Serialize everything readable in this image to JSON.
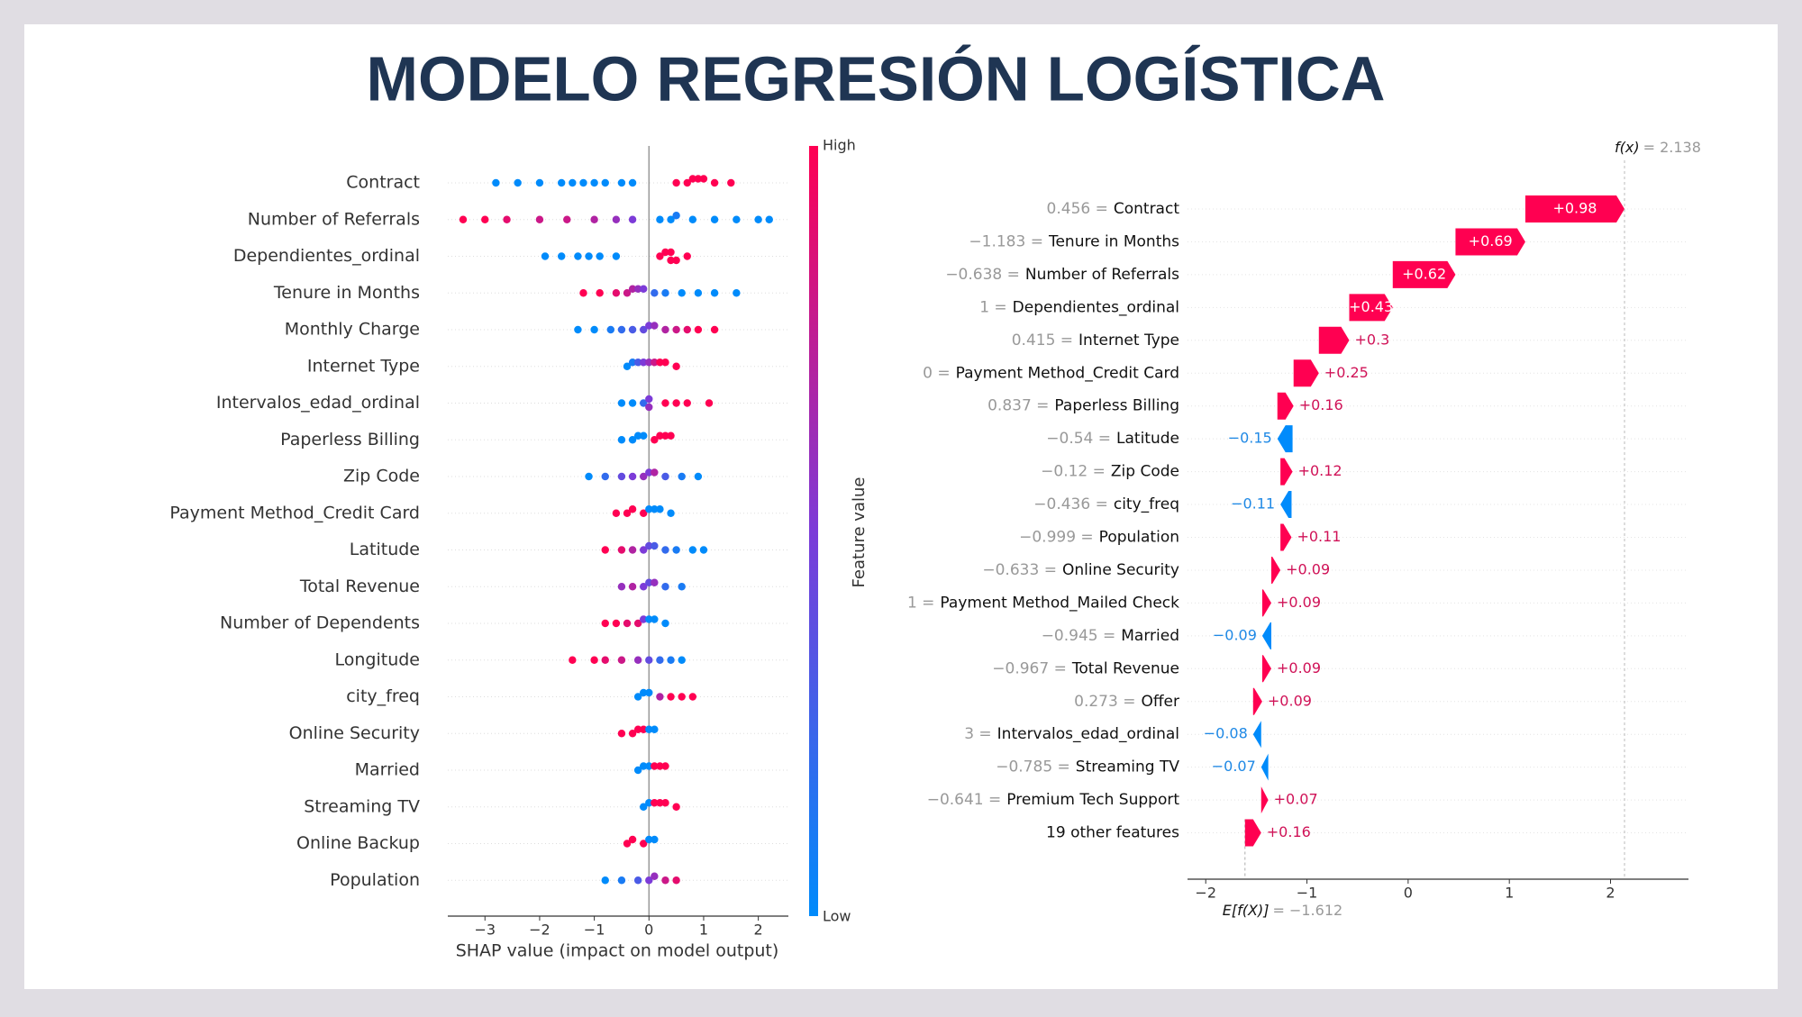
{
  "title": "MODELO REGRESIÓN LOGÍSTICA",
  "chart_data": [
    {
      "type": "beeswarm",
      "categories": [
        "Contract",
        "Number of Referrals",
        "Dependientes_ordinal",
        "Tenure in Months",
        "Monthly Charge",
        "Internet Type",
        "Intervalos_edad_ordinal",
        "Paperless Billing",
        "Zip Code",
        "Payment Method_Credit Card",
        "Latitude",
        "Total Revenue",
        "Number of Dependents",
        "Longitude",
        "city_freq",
        "Online Security",
        "Married",
        "Streaming TV",
        "Online Backup",
        "Population"
      ],
      "points": [
        {
          "shap": [
            -2.8,
            -2.4,
            -2.0,
            -1.6,
            -1.4,
            -1.2,
            -1.0,
            -0.8,
            -0.5,
            -0.3,
            0.5,
            0.7,
            0.8,
            0.9,
            1.0,
            1.2,
            1.5
          ],
          "feature_values": [
            0,
            0,
            0,
            0,
            0,
            0,
            0,
            0,
            0,
            0,
            1,
            1,
            1,
            1,
            1,
            1,
            1
          ]
        },
        {
          "shap": [
            -3.4,
            -3.0,
            -2.6,
            -2.0,
            -1.5,
            -1.0,
            -0.6,
            -0.3,
            0.2,
            0.4,
            0.5,
            0.8,
            1.2,
            1.6,
            2.0,
            2.2
          ],
          "feature_values": [
            1,
            1,
            0.9,
            0.8,
            0.8,
            0.7,
            0.6,
            0.5,
            0,
            0,
            0.1,
            0,
            0,
            0,
            0,
            0
          ]
        },
        {
          "shap": [
            -1.9,
            -1.6,
            -1.3,
            -1.1,
            -0.9,
            -0.6,
            0.2,
            0.3,
            0.4,
            0.4,
            0.5,
            0.7
          ],
          "feature_values": [
            0,
            0,
            0,
            0,
            0,
            0,
            1,
            1,
            1,
            1,
            1,
            1
          ]
        },
        {
          "shap": [
            -1.2,
            -0.9,
            -0.6,
            -0.4,
            -0.3,
            -0.2,
            -0.1,
            0.1,
            0.3,
            0.6,
            0.9,
            1.2,
            1.6
          ],
          "feature_values": [
            1,
            1,
            0.9,
            0.8,
            0.7,
            0.6,
            0.5,
            0.2,
            0.1,
            0,
            0,
            0,
            0
          ]
        },
        {
          "shap": [
            -1.3,
            -1.0,
            -0.7,
            -0.5,
            -0.3,
            -0.1,
            0.0,
            0.1,
            0.3,
            0.5,
            0.7,
            0.9,
            1.2
          ],
          "feature_values": [
            0,
            0,
            0.1,
            0.2,
            0.3,
            0.4,
            0.5,
            0.6,
            0.7,
            0.8,
            0.9,
            1,
            1
          ]
        },
        {
          "shap": [
            -0.4,
            -0.3,
            -0.2,
            -0.1,
            0,
            0.1,
            0.2,
            0.3,
            0.5
          ],
          "feature_values": [
            0,
            0.1,
            0.3,
            0.5,
            0.6,
            0.8,
            1,
            1,
            1
          ]
        },
        {
          "shap": [
            -0.5,
            -0.3,
            -0.1,
            0,
            0,
            0.3,
            0.5,
            0.7,
            1.1
          ],
          "feature_values": [
            0,
            0,
            0.2,
            0.5,
            0.6,
            1,
            1,
            1,
            1
          ]
        },
        {
          "shap": [
            -0.5,
            -0.3,
            -0.2,
            -0.1,
            0.1,
            0.2,
            0.3,
            0.4
          ],
          "feature_values": [
            0,
            0,
            0,
            0,
            1,
            1,
            1,
            1
          ]
        },
        {
          "shap": [
            -1.1,
            -0.8,
            -0.5,
            -0.3,
            -0.1,
            0,
            0.1,
            0.3,
            0.6,
            0.9
          ],
          "feature_values": [
            0,
            0.2,
            0.4,
            0.5,
            0.6,
            0.5,
            0.7,
            0.3,
            0.1,
            0
          ]
        },
        {
          "shap": [
            -0.6,
            -0.4,
            -0.3,
            -0.1,
            0,
            0.1,
            0.2,
            0.4
          ],
          "feature_values": [
            1,
            1,
            1,
            1,
            0,
            0,
            0,
            0
          ]
        },
        {
          "shap": [
            -0.8,
            -0.5,
            -0.3,
            -0.1,
            0,
            0.1,
            0.3,
            0.5,
            0.8,
            1.0
          ],
          "feature_values": [
            1,
            0.9,
            0.7,
            0.5,
            0.4,
            0.3,
            0.2,
            0.1,
            0,
            0
          ]
        },
        {
          "shap": [
            -0.5,
            -0.3,
            -0.1,
            0,
            0.1,
            0.3,
            0.6
          ],
          "feature_values": [
            0.6,
            0.7,
            0.5,
            0.4,
            0.6,
            0.2,
            0.1
          ]
        },
        {
          "shap": [
            -0.8,
            -0.6,
            -0.4,
            -0.2,
            -0.1,
            0,
            0.1,
            0.3
          ],
          "feature_values": [
            1,
            1,
            0.9,
            0.9,
            0.5,
            0,
            0,
            0
          ]
        },
        {
          "shap": [
            -1.4,
            -1.0,
            -0.8,
            -0.5,
            -0.2,
            0,
            0.2,
            0.4,
            0.6
          ],
          "feature_values": [
            1,
            1,
            0.9,
            0.8,
            0.6,
            0.4,
            0.2,
            0.1,
            0
          ]
        },
        {
          "shap": [
            -0.2,
            -0.1,
            0,
            0.2,
            0.4,
            0.6,
            0.8
          ],
          "feature_values": [
            0,
            0,
            0,
            0.7,
            1,
            1,
            1
          ]
        },
        {
          "shap": [
            -0.5,
            -0.3,
            -0.2,
            -0.1,
            0,
            0.1
          ],
          "feature_values": [
            1,
            1,
            1,
            1,
            0,
            0
          ]
        },
        {
          "shap": [
            -0.2,
            -0.1,
            0,
            0.1,
            0.2,
            0.3
          ],
          "feature_values": [
            0,
            0,
            0,
            1,
            1,
            1
          ]
        },
        {
          "shap": [
            -0.1,
            0,
            0.1,
            0.2,
            0.3,
            0.5
          ],
          "feature_values": [
            0,
            0,
            1,
            1,
            1,
            1
          ]
        },
        {
          "shap": [
            -0.4,
            -0.3,
            -0.1,
            0,
            0.1
          ],
          "feature_values": [
            1,
            1,
            1,
            0,
            0
          ]
        },
        {
          "shap": [
            -0.8,
            -0.5,
            -0.2,
            0,
            0.1,
            0.3,
            0.5
          ],
          "feature_values": [
            0,
            0.1,
            0.3,
            0.5,
            0.6,
            0.8,
            0.9
          ]
        }
      ],
      "xlim": [
        -3.68,
        2.55
      ],
      "xticks": [
        {
          "value": -3,
          "label": "−3"
        },
        {
          "value": -2,
          "label": "−2"
        },
        {
          "value": -1,
          "label": "−1"
        },
        0,
        1,
        2
      ],
      "xlabel": "SHAP value (impact on model output)",
      "colorbar": {
        "high": "High",
        "low": "Low",
        "label": "Feature value",
        "colors": [
          "#008bfb",
          "#7c3bd8",
          "#ff0052"
        ]
      }
    },
    {
      "type": "waterfall",
      "prefixes": [
        "0.456 =",
        "−1.183 =",
        "−0.638 =",
        "1 =",
        "0.415 =",
        "0 =",
        "0.837 =",
        "−0.54 =",
        "−0.12 =",
        "−0.436 =",
        "−0.999 =",
        "−0.633 =",
        "1 =",
        "−0.945 =",
        "−0.967 =",
        "0.273 =",
        "3 =",
        "−0.785 =",
        "−0.641 =",
        null
      ],
      "categories": [
        "Contract",
        "Tenure in Months",
        "Number of Referrals",
        "Dependientes_ordinal",
        "Internet Type",
        "Payment Method_Credit Card",
        "Paperless Billing",
        "Latitude",
        "Zip Code",
        "city_freq",
        "Population",
        "Online Security",
        "Payment Method_Mailed Check",
        "Married",
        "Total Revenue",
        "Offer",
        "Intervalos_edad_ordinal",
        "Streaming TV",
        "Premium Tech Support",
        "19 other features"
      ],
      "values": [
        0.98,
        0.69,
        0.62,
        0.43,
        0.3,
        0.25,
        0.16,
        -0.15,
        0.12,
        -0.11,
        0.11,
        0.09,
        0.09,
        -0.09,
        0.09,
        0.09,
        -0.08,
        -0.07,
        0.07,
        0.16
      ],
      "value_labels": [
        "+0.98",
        "+0.69",
        "+0.62",
        "+0.43",
        "+0.3",
        "+0.25",
        "+0.16",
        "−0.15",
        "+0.12",
        "−0.11",
        "+0.11",
        "+0.09",
        "+0.09",
        "−0.09",
        "+0.09",
        "+0.09",
        "−0.08",
        "−0.07",
        "+0.07",
        "+0.16"
      ],
      "base_name": "E[f(X)]",
      "base": {
        "value": -1.612,
        "label": "= −1.612"
      },
      "fx_name": "f(x)",
      "fx": {
        "value": 2.138,
        "label": "= 2.138"
      },
      "xlim": [
        -2.18,
        2.77
      ],
      "xticks": [
        {
          "value": -2,
          "label": "−2"
        },
        {
          "value": -1,
          "label": "−1"
        },
        0,
        1,
        2
      ],
      "colors": {
        "positive": "#ff0051",
        "negative": "#008bfb",
        "positive_text": "#d01257",
        "negative_text": "#1e88e5"
      }
    }
  ]
}
